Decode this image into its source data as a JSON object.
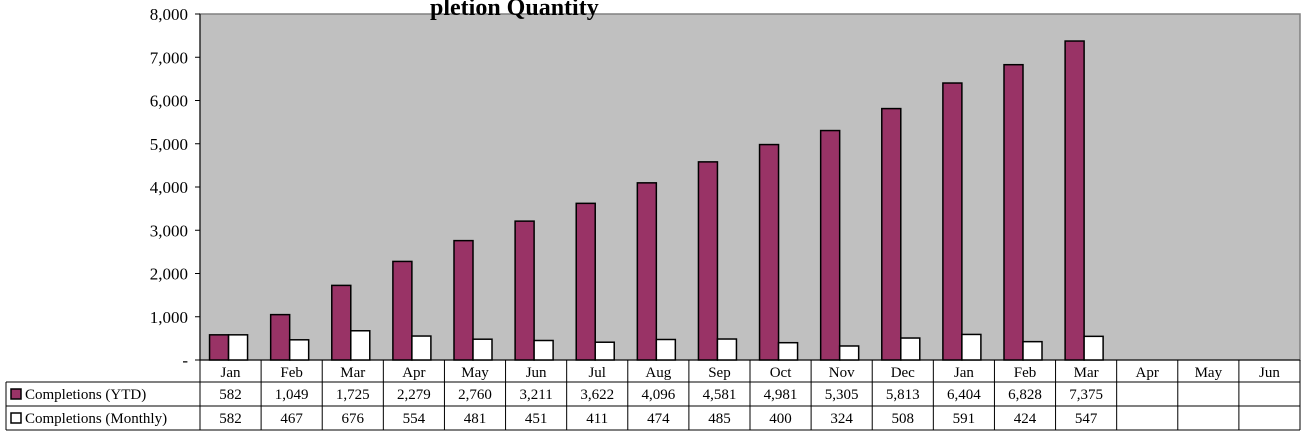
{
  "chart_data": {
    "type": "bar",
    "title": "pletion Quantity",
    "categories": [
      "Jan",
      "Feb",
      "Mar",
      "Apr",
      "May",
      "Jun",
      "Jul",
      "Aug",
      "Sep",
      "Oct",
      "Nov",
      "Dec",
      "Jan",
      "Feb",
      "Mar",
      "Apr",
      "May",
      "Jun"
    ],
    "series": [
      {
        "name": "Completions (YTD)",
        "color": "#993366",
        "values": [
          582,
          1049,
          1725,
          2279,
          2760,
          3211,
          3622,
          4096,
          4581,
          4981,
          5305,
          5813,
          6404,
          6828,
          7375,
          null,
          null,
          null
        ],
        "labels": [
          "582",
          "1,049",
          "1,725",
          "2,279",
          "2,760",
          "3,211",
          "3,622",
          "4,096",
          "4,581",
          "4,981",
          "5,305",
          "5,813",
          "6,404",
          "6,828",
          "7,375",
          "",
          "",
          ""
        ]
      },
      {
        "name": "Completions (Monthly)",
        "color": "#ffffff",
        "values": [
          582,
          467,
          676,
          554,
          481,
          451,
          411,
          474,
          485,
          400,
          324,
          508,
          591,
          424,
          547,
          null,
          null,
          null
        ],
        "labels": [
          "582",
          "467",
          "676",
          "554",
          "481",
          "451",
          "411",
          "474",
          "485",
          "400",
          "324",
          "508",
          "591",
          "424",
          "547",
          "",
          "",
          ""
        ]
      }
    ],
    "ylim": [
      0,
      8000
    ],
    "yticks": [
      0,
      1000,
      2000,
      3000,
      4000,
      5000,
      6000,
      7000,
      8000
    ],
    "ytick_labels": [
      "-",
      "1,000",
      "2,000",
      "3,000",
      "4,000",
      "5,000",
      "6,000",
      "7,000",
      "8,000"
    ],
    "grid": false,
    "plot_background": "#c0c0c0",
    "legend": "data-table",
    "xlabel": "",
    "ylabel": ""
  }
}
